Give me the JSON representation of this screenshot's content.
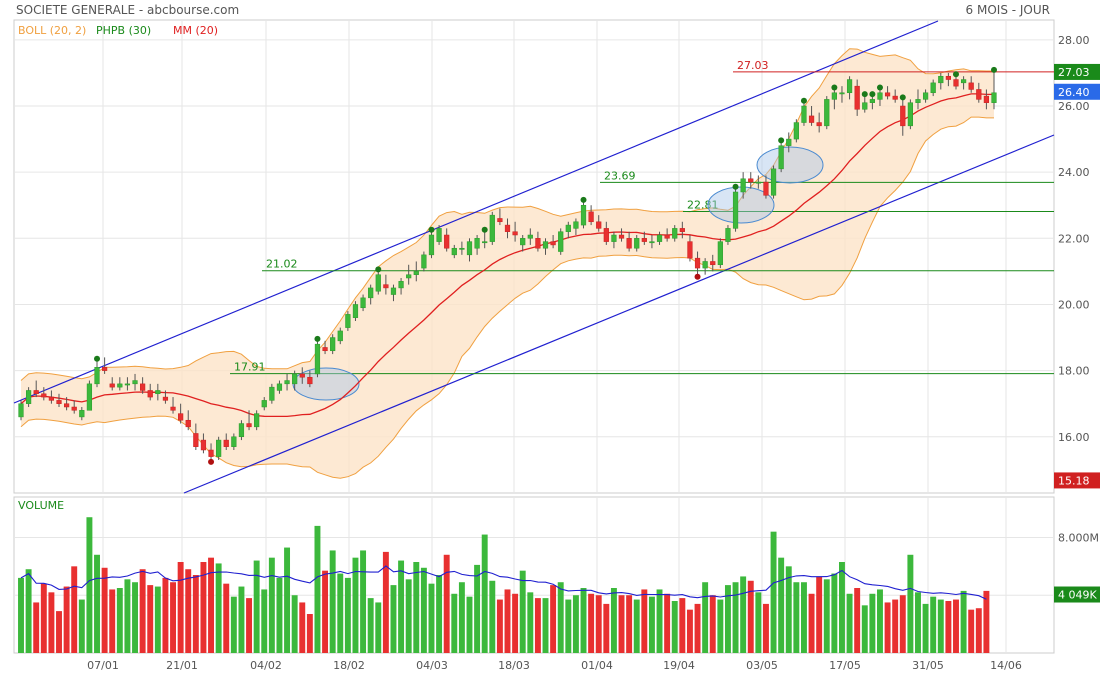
{
  "header": {
    "title": "SOCIETE GENERALE - abcbourse.com",
    "period": "6 MOIS - JOUR"
  },
  "legend": [
    {
      "label": "BOLL (20, 2)",
      "color": "#f0a040"
    },
    {
      "label": "PHPB (30)",
      "color": "#1a8a1a"
    },
    {
      "label": "MM (20)",
      "color": "#e02020"
    }
  ],
  "volume_label": "VOLUME",
  "colors": {
    "up": "#3cb83c",
    "down": "#e83030",
    "boll_fill": "#fde3c8",
    "boll_line": "#f0a040",
    "ma": "#e02020",
    "channel": "#2020d0",
    "hline": "#1a8a1a",
    "resistance": "#d02020",
    "vol_avg": "#2020d0"
  },
  "price_axis": {
    "ticks": [
      "28.00",
      "26.00",
      "24.00",
      "22.00",
      "20.00",
      "18.00",
      "16.00"
    ],
    "last_close": "26.40",
    "phpb_high": "27.03",
    "low": "15.18"
  },
  "volume_axis": {
    "ticks": [
      "8.000M"
    ],
    "last_avg": "4 049K"
  },
  "x_axis": {
    "labels": [
      "07/01",
      "21/01",
      "04/02",
      "18/02",
      "04/03",
      "18/03",
      "01/04",
      "19/04",
      "03/05",
      "17/05",
      "31/05",
      "14/06"
    ]
  },
  "levels": [
    {
      "label": "27.03",
      "value": 27.03,
      "color": "#d02020"
    },
    {
      "label": "23.69",
      "value": 23.69,
      "color": "#1a8a1a"
    },
    {
      "label": "22.81",
      "value": 22.81,
      "color": "#1a8a1a"
    },
    {
      "label": "21.02",
      "value": 21.02,
      "color": "#1a8a1a"
    },
    {
      "label": "17.91",
      "value": 17.91,
      "color": "#1a8a1a"
    }
  ],
  "chart_data": {
    "type": "candlestick",
    "title": "SOCIETE GENERALE",
    "price_ylim": [
      14.3,
      28.6
    ],
    "volume_ylim": [
      0,
      10800000
    ],
    "candles": [
      [
        16.6,
        17.1,
        16.5,
        17.0
      ],
      [
        17.0,
        17.5,
        16.9,
        17.4
      ],
      [
        17.4,
        17.7,
        17.2,
        17.3
      ],
      [
        17.3,
        17.5,
        17.1,
        17.2
      ],
      [
        17.2,
        17.4,
        17.0,
        17.1
      ],
      [
        17.1,
        17.3,
        16.9,
        17.0
      ],
      [
        17.0,
        17.2,
        16.8,
        16.9
      ],
      [
        16.9,
        17.1,
        16.7,
        16.8
      ],
      [
        16.6,
        16.9,
        16.5,
        16.8
      ],
      [
        16.8,
        17.7,
        16.8,
        17.6
      ],
      [
        17.6,
        18.3,
        17.5,
        18.1
      ],
      [
        18.1,
        18.4,
        17.9,
        18.0
      ],
      [
        17.6,
        17.8,
        17.4,
        17.5
      ],
      [
        17.5,
        17.8,
        17.4,
        17.6
      ],
      [
        17.6,
        17.8,
        17.4,
        17.6
      ],
      [
        17.6,
        17.9,
        17.4,
        17.7
      ],
      [
        17.6,
        17.8,
        17.3,
        17.4
      ],
      [
        17.4,
        17.6,
        17.1,
        17.2
      ],
      [
        17.3,
        17.6,
        17.1,
        17.4
      ],
      [
        17.2,
        17.4,
        17.0,
        17.1
      ],
      [
        16.9,
        17.2,
        16.7,
        16.8
      ],
      [
        16.7,
        17.0,
        16.4,
        16.5
      ],
      [
        16.5,
        16.8,
        16.2,
        16.3
      ],
      [
        16.1,
        16.4,
        15.6,
        15.7
      ],
      [
        15.9,
        16.1,
        15.5,
        15.6
      ],
      [
        15.6,
        15.8,
        15.3,
        15.4
      ],
      [
        15.4,
        16.0,
        15.3,
        15.9
      ],
      [
        15.9,
        16.1,
        15.6,
        15.7
      ],
      [
        15.7,
        16.1,
        15.6,
        16.0
      ],
      [
        16.0,
        16.5,
        15.9,
        16.4
      ],
      [
        16.4,
        16.8,
        16.2,
        16.3
      ],
      [
        16.3,
        16.8,
        16.2,
        16.7
      ],
      [
        16.9,
        17.2,
        16.8,
        17.1
      ],
      [
        17.1,
        17.6,
        17.0,
        17.5
      ],
      [
        17.4,
        17.7,
        17.3,
        17.6
      ],
      [
        17.6,
        17.9,
        17.4,
        17.7
      ],
      [
        17.6,
        18.0,
        17.4,
        17.9
      ],
      [
        17.9,
        18.1,
        17.6,
        17.8
      ],
      [
        17.8,
        18.0,
        17.5,
        17.6
      ],
      [
        17.9,
        18.9,
        17.8,
        18.8
      ],
      [
        18.7,
        18.9,
        18.5,
        18.6
      ],
      [
        18.6,
        19.1,
        18.5,
        19.0
      ],
      [
        18.9,
        19.3,
        18.8,
        19.2
      ],
      [
        19.3,
        19.8,
        19.2,
        19.7
      ],
      [
        19.6,
        20.1,
        19.5,
        20.0
      ],
      [
        19.9,
        20.3,
        19.8,
        20.2
      ],
      [
        20.2,
        20.6,
        20.0,
        20.5
      ],
      [
        20.4,
        21.0,
        20.3,
        20.9
      ],
      [
        20.6,
        20.9,
        20.3,
        20.5
      ],
      [
        20.3,
        20.6,
        20.1,
        20.5
      ],
      [
        20.5,
        20.8,
        20.3,
        20.7
      ],
      [
        20.8,
        21.2,
        20.6,
        20.9
      ],
      [
        20.9,
        21.3,
        20.7,
        21.0
      ],
      [
        21.1,
        21.6,
        21.0,
        21.5
      ],
      [
        21.5,
        22.2,
        21.4,
        22.1
      ],
      [
        21.9,
        22.4,
        21.8,
        22.3
      ],
      [
        22.1,
        22.3,
        21.6,
        21.7
      ],
      [
        21.5,
        21.8,
        21.4,
        21.7
      ],
      [
        21.7,
        21.9,
        21.5,
        21.7
      ],
      [
        21.5,
        22.0,
        21.3,
        21.9
      ],
      [
        21.7,
        22.1,
        21.5,
        22.0
      ],
      [
        21.9,
        22.2,
        21.7,
        21.9
      ],
      [
        21.9,
        22.8,
        21.8,
        22.7
      ],
      [
        22.6,
        22.9,
        22.4,
        22.5
      ],
      [
        22.4,
        22.6,
        22.0,
        22.2
      ],
      [
        22.2,
        22.5,
        21.9,
        22.1
      ],
      [
        21.8,
        22.1,
        21.6,
        22.0
      ],
      [
        22.0,
        22.3,
        21.8,
        22.1
      ],
      [
        22.0,
        22.2,
        21.6,
        21.7
      ],
      [
        21.7,
        22.0,
        21.5,
        21.9
      ],
      [
        21.9,
        22.1,
        21.7,
        21.8
      ],
      [
        21.6,
        22.3,
        21.5,
        22.2
      ],
      [
        22.2,
        22.5,
        22.0,
        22.4
      ],
      [
        22.3,
        22.6,
        22.1,
        22.5
      ],
      [
        22.4,
        23.1,
        22.3,
        23.0
      ],
      [
        22.8,
        23.0,
        22.4,
        22.5
      ],
      [
        22.5,
        22.7,
        22.2,
        22.3
      ],
      [
        22.3,
        22.5,
        21.8,
        21.9
      ],
      [
        21.9,
        22.2,
        21.7,
        22.1
      ],
      [
        22.1,
        22.3,
        21.9,
        22.0
      ],
      [
        22.0,
        22.2,
        21.6,
        21.7
      ],
      [
        21.7,
        22.1,
        21.6,
        22.0
      ],
      [
        22.0,
        22.2,
        21.8,
        21.9
      ],
      [
        21.9,
        22.1,
        21.7,
        21.9
      ],
      [
        21.9,
        22.2,
        21.8,
        22.1
      ],
      [
        22.1,
        22.3,
        21.9,
        22.0
      ],
      [
        22.0,
        22.4,
        21.9,
        22.3
      ],
      [
        22.3,
        22.5,
        22.0,
        22.2
      ],
      [
        21.9,
        22.1,
        21.3,
        21.4
      ],
      [
        21.4,
        21.6,
        20.9,
        21.1
      ],
      [
        21.1,
        21.4,
        20.9,
        21.3
      ],
      [
        21.3,
        21.5,
        21.0,
        21.2
      ],
      [
        21.2,
        22.0,
        21.1,
        21.9
      ],
      [
        21.9,
        22.4,
        21.8,
        22.3
      ],
      [
        22.3,
        23.5,
        22.2,
        23.4
      ],
      [
        23.4,
        24.0,
        23.2,
        23.8
      ],
      [
        23.8,
        24.0,
        23.5,
        23.7
      ],
      [
        23.7,
        23.9,
        23.5,
        23.7
      ],
      [
        23.7,
        23.9,
        23.2,
        23.3
      ],
      [
        23.3,
        24.2,
        23.2,
        24.1
      ],
      [
        24.1,
        24.9,
        24.0,
        24.8
      ],
      [
        24.8,
        25.2,
        24.6,
        25.0
      ],
      [
        25.0,
        25.6,
        24.9,
        25.5
      ],
      [
        25.5,
        26.1,
        25.4,
        26.0
      ],
      [
        25.7,
        26.0,
        25.4,
        25.5
      ],
      [
        25.5,
        25.8,
        25.2,
        25.4
      ],
      [
        25.4,
        26.3,
        25.3,
        26.2
      ],
      [
        26.2,
        26.5,
        25.9,
        26.4
      ],
      [
        26.4,
        26.6,
        26.1,
        26.4
      ],
      [
        26.4,
        26.9,
        26.2,
        26.8
      ],
      [
        26.6,
        26.8,
        25.7,
        25.9
      ],
      [
        25.9,
        26.3,
        25.8,
        26.1
      ],
      [
        26.1,
        26.3,
        25.9,
        26.2
      ],
      [
        26.2,
        26.5,
        26.0,
        26.4
      ],
      [
        26.4,
        26.6,
        26.2,
        26.3
      ],
      [
        26.3,
        26.5,
        26.1,
        26.2
      ],
      [
        26.0,
        26.2,
        25.1,
        25.4
      ],
      [
        25.4,
        26.2,
        25.3,
        26.1
      ],
      [
        26.1,
        26.5,
        25.9,
        26.2
      ],
      [
        26.2,
        26.5,
        26.1,
        26.4
      ],
      [
        26.4,
        26.8,
        26.3,
        26.7
      ],
      [
        26.7,
        27.0,
        26.5,
        26.9
      ],
      [
        26.9,
        27.0,
        26.6,
        26.8
      ],
      [
        26.8,
        26.9,
        26.5,
        26.6
      ],
      [
        26.7,
        26.9,
        26.5,
        26.8
      ],
      [
        26.7,
        26.9,
        26.4,
        26.5
      ],
      [
        26.5,
        26.7,
        26.1,
        26.2
      ],
      [
        26.3,
        26.5,
        25.9,
        26.1
      ],
      [
        26.1,
        27.03,
        25.9,
        26.4
      ]
    ],
    "volume": [
      5.2,
      5.8,
      3.5,
      4.8,
      4.2,
      2.9,
      4.6,
      6.0,
      3.7,
      9.4,
      6.8,
      5.9,
      4.4,
      4.5,
      5.1,
      4.9,
      5.8,
      4.7,
      4.6,
      5.2,
      4.9,
      6.3,
      5.8,
      5.4,
      6.3,
      6.6,
      6.2,
      4.8,
      3.9,
      4.6,
      3.8,
      6.4,
      4.4,
      6.6,
      5.2,
      7.3,
      4.0,
      3.5,
      2.7,
      8.8,
      5.7,
      7.1,
      5.5,
      5.2,
      6.6,
      7.1,
      3.8,
      3.5,
      7.0,
      4.7,
      6.4,
      5.1,
      6.3,
      5.9,
      4.8,
      5.4,
      6.8,
      4.1,
      4.9,
      3.9,
      6.1,
      8.2,
      5.0,
      3.7,
      4.4,
      4.1,
      5.7,
      4.2,
      3.8,
      3.8,
      4.7,
      4.9,
      3.7,
      4.0,
      4.5,
      4.1,
      4.0,
      3.4,
      4.5,
      4.0,
      4.0,
      3.7,
      4.4,
      3.9,
      4.4,
      4.1,
      3.6,
      3.8,
      3.0,
      3.4,
      4.9,
      4.0,
      3.7,
      4.7,
      4.9,
      5.3,
      5.0,
      4.2,
      3.4,
      8.4,
      6.6,
      6.0,
      4.9,
      4.9,
      4.1,
      5.3,
      5.1,
      5.5,
      6.3,
      4.1,
      4.5,
      3.3,
      4.1,
      4.4,
      3.5,
      3.7,
      4.0,
      6.8,
      4.2,
      3.4,
      3.9,
      3.7,
      3.6,
      3.7,
      4.3,
      3.0,
      3.1,
      4.3
    ]
  }
}
